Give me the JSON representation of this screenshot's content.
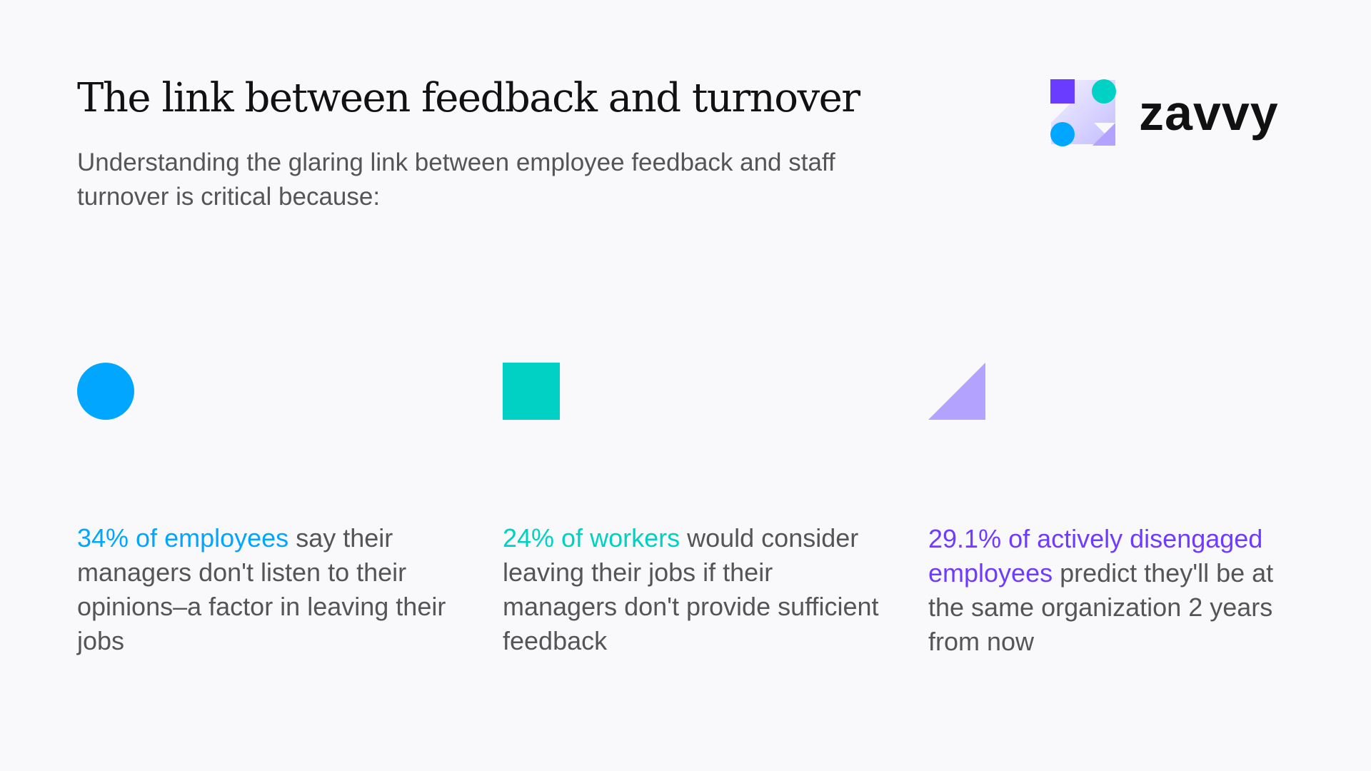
{
  "header": {
    "title": "The link between feedback and turnover",
    "subtitle": "Understanding the glaring link between employee feedback and staff turnover is critical because:"
  },
  "logo": {
    "text": "zavvy"
  },
  "stats": [
    {
      "shape": "circle",
      "color": "#00a6ff",
      "highlight": "34% of employees",
      "rest": " say their managers don't listen to their opinions–a factor in leaving their jobs"
    },
    {
      "shape": "square",
      "color": "#00d1c5",
      "highlight": "24% of workers",
      "rest": " would consider leaving their jobs if their managers don't provide sufficient feedback"
    },
    {
      "shape": "triangle",
      "color": "#b4a2ff",
      "highlight_color": "#6f3bff",
      "highlight": "29.1% of actively disengaged employees",
      "rest": " predict they'll be at the same organization 2 years from now"
    }
  ]
}
